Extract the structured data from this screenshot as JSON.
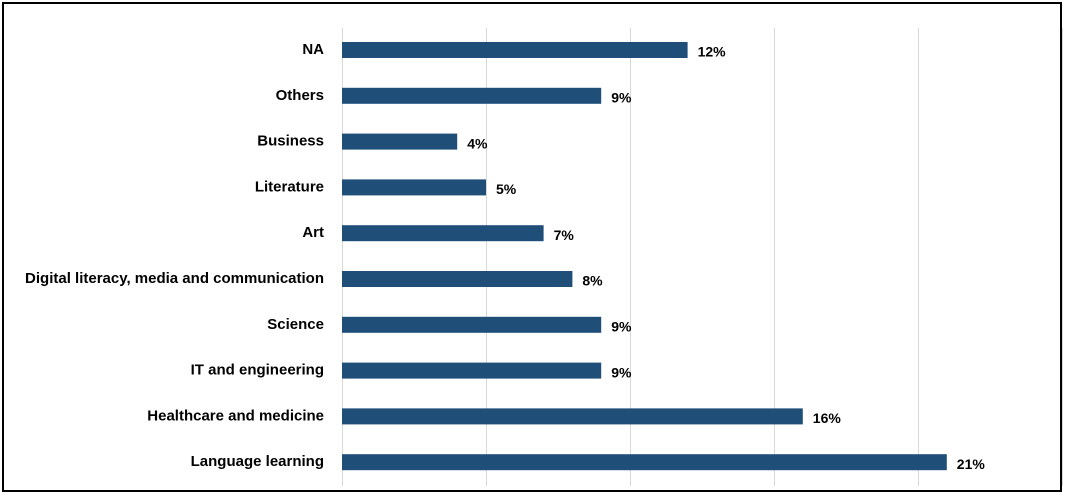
{
  "chart_data": {
    "type": "bar",
    "orientation": "horizontal",
    "categories": [
      "NA",
      "Others",
      "Business",
      "Literature",
      "Art",
      "Digital literacy, media and communication",
      "Science",
      "IT and engineering",
      "Healthcare and medicine",
      "Language learning"
    ],
    "values": [
      12,
      9,
      4,
      5,
      7,
      8,
      9,
      9,
      16,
      21
    ],
    "value_labels": [
      "12%",
      "9%",
      "4%",
      "5%",
      "7%",
      "8%",
      "9%",
      "9%",
      "16%",
      "21%"
    ],
    "unit": "%",
    "xlim": [
      0,
      25
    ],
    "grid": true,
    "bar_color": "#1f4e79",
    "grid_color": "#d9d9d9"
  }
}
